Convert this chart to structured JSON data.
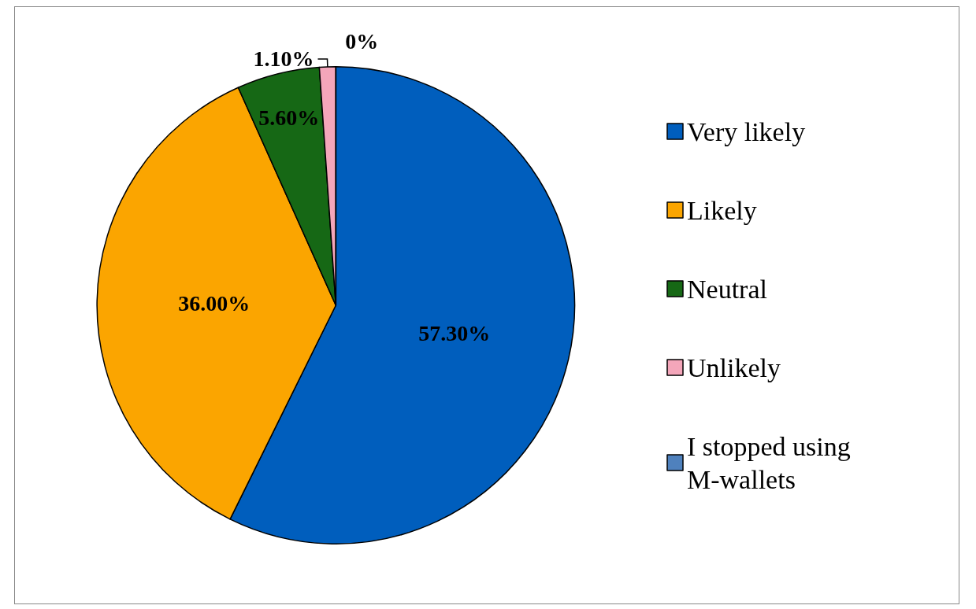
{
  "chart_data": {
    "type": "pie",
    "categories": [
      "Very likely",
      "Likely",
      "Neutral",
      "Unlikely",
      "I stopped using M-wallets"
    ],
    "values": [
      57.3,
      36.0,
      5.6,
      1.1,
      0
    ],
    "colors": [
      "#005ebd",
      "#fba500",
      "#166815",
      "#f4a6ba",
      "#4f81bd"
    ],
    "value_labels": [
      "57.30%",
      "36.00%",
      "5.60%",
      "1.10%",
      "0%"
    ],
    "legend": "right"
  }
}
